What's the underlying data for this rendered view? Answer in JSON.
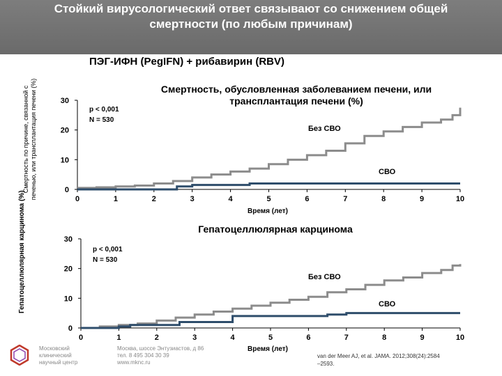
{
  "slide": {
    "title_line1": "Стойкий вирусологический ответ связывают со снижением общей",
    "title_line2": "смертности (по любым причинам)",
    "subtitle": "ПЭГ-ИФН (PegIFN) + рибавирин (RBV)",
    "outer_ylabel": "Гепатоцеллюлярная карцинома (%)",
    "footer": {
      "org": [
        "Московский",
        "клинический",
        "научный центр"
      ],
      "address": [
        "Москва, шоссе Энтузиастов, д 86",
        "тел. 8 495 304 30 39",
        "www.mknc.ru"
      ],
      "citation": "van der Meer AJ, et al. JAMA. 2012;308(24):2584 –2593."
    },
    "colors": {
      "header": "#737373",
      "no_svr": "#8c8c8c",
      "svr": "#2e4d6b"
    }
  },
  "chart_data": [
    {
      "type": "line",
      "title": "Смертность, обусловленная заболеванием печени, или трансплантация печени (%)",
      "ylabel_line1": "Смертность по причине, связанной с",
      "ylabel_line2": "печенью, или трансплантация печени (%)",
      "xlabel": "Время (лет)",
      "xlim": [
        0,
        10
      ],
      "ylim": [
        0,
        30
      ],
      "xticks": [
        0,
        1,
        2,
        3,
        4,
        5,
        6,
        7,
        8,
        9,
        10
      ],
      "yticks": [
        0,
        10,
        20,
        30
      ],
      "stats": [
        "p < 0,001",
        "N = 530"
      ],
      "series": [
        {
          "name": "Без СВО",
          "color": "#8c8c8c",
          "step": true,
          "x": [
            0,
            0.5,
            1,
            1.5,
            2,
            2.5,
            3,
            3.5,
            4,
            4.5,
            5,
            5.5,
            6,
            6.5,
            7,
            7.5,
            8,
            8.5,
            9,
            9.5,
            9.8,
            10
          ],
          "y": [
            0.5,
            0.7,
            1,
            1.3,
            2,
            2.8,
            4,
            5,
            6,
            7,
            8.5,
            10,
            11.5,
            13,
            15.5,
            18,
            19.5,
            21,
            22.5,
            23.5,
            25,
            27.5
          ]
        },
        {
          "name": "СВО",
          "color": "#2e4d6b",
          "step": true,
          "x": [
            0,
            2.5,
            2.6,
            3.0,
            4.5,
            10
          ],
          "y": [
            0,
            0,
            1,
            1.5,
            2,
            2
          ]
        }
      ]
    },
    {
      "type": "line",
      "title": "Гепатоцеллюлярная карцинома",
      "xlabel": "Время (лет)",
      "xlim": [
        0,
        10
      ],
      "ylim": [
        0,
        30
      ],
      "xticks": [
        0,
        1,
        2,
        3,
        4,
        5,
        6,
        7,
        8,
        9,
        10
      ],
      "yticks": [
        0,
        10,
        20,
        30
      ],
      "stats": [
        "p < 0,001",
        "N = 530"
      ],
      "series": [
        {
          "name": "Без СВО",
          "color": "#8c8c8c",
          "step": true,
          "x": [
            0,
            0.5,
            1,
            1.5,
            2,
            2.5,
            3,
            3.5,
            4,
            4.5,
            5,
            5.5,
            6,
            6.5,
            7,
            7.5,
            8,
            8.5,
            9,
            9.5,
            9.8,
            10
          ],
          "y": [
            0,
            0.5,
            1,
            1.5,
            2.5,
            3.5,
            4.5,
            5.5,
            6.5,
            7.5,
            8.5,
            9.5,
            10.5,
            12,
            13,
            14.5,
            16,
            17,
            18.5,
            19.5,
            21,
            21.5
          ]
        },
        {
          "name": "СВО",
          "color": "#2e4d6b",
          "step": true,
          "x": [
            0,
            1,
            1.3,
            2.6,
            4,
            6.5,
            7,
            10
          ],
          "y": [
            0,
            0.5,
            1,
            2,
            4,
            4.5,
            5,
            5
          ]
        }
      ]
    }
  ]
}
